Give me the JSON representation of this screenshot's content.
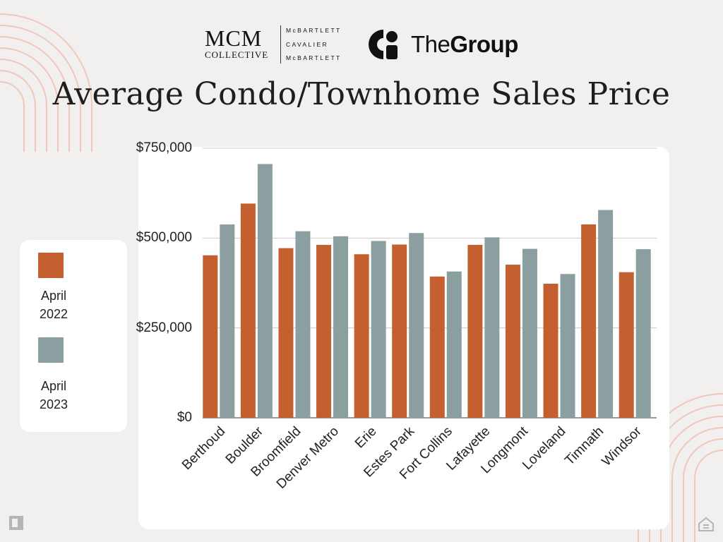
{
  "logos": {
    "mcm_main": "MCM",
    "mcm_sub": "COLLECTIVE",
    "mcm_names": [
      "McBARTLETT",
      "CAVALIER",
      "McBARTLETT"
    ],
    "group_prefix": "The",
    "group_bold": "Group"
  },
  "chart_data": {
    "type": "bar",
    "title": "Average  Condo/Townhome Sales Price",
    "xlabel": "",
    "ylabel": "",
    "ylim": [
      0,
      750000
    ],
    "yticks": [
      0,
      250000,
      500000,
      750000
    ],
    "ytick_labels": [
      "$0",
      "$250,000",
      "$500,000",
      "$750,000"
    ],
    "categories": [
      "Berthoud",
      "Boulder",
      "Broomfield",
      "Denver Metro",
      "Erie",
      "Estes Park",
      "Fort Collins",
      "Lafayette",
      "Longmont",
      "Loveland",
      "Timnath",
      "Windsor"
    ],
    "series": [
      {
        "name": "April 2022",
        "legend_lines": [
          "April",
          "2022"
        ],
        "color": "#c4602f",
        "values": [
          452000,
          596000,
          472000,
          481000,
          455000,
          482000,
          393000,
          481000,
          426000,
          373000,
          538000,
          405000
        ]
      },
      {
        "name": "April 2023",
        "legend_lines": [
          "April",
          "2023"
        ],
        "color": "#8b9ea0",
        "values": [
          538000,
          706000,
          519000,
          505000,
          492000,
          514000,
          407000,
          502000,
          470000,
          400000,
          578000,
          469000
        ]
      }
    ],
    "grid": true,
    "legend_position": "left"
  }
}
